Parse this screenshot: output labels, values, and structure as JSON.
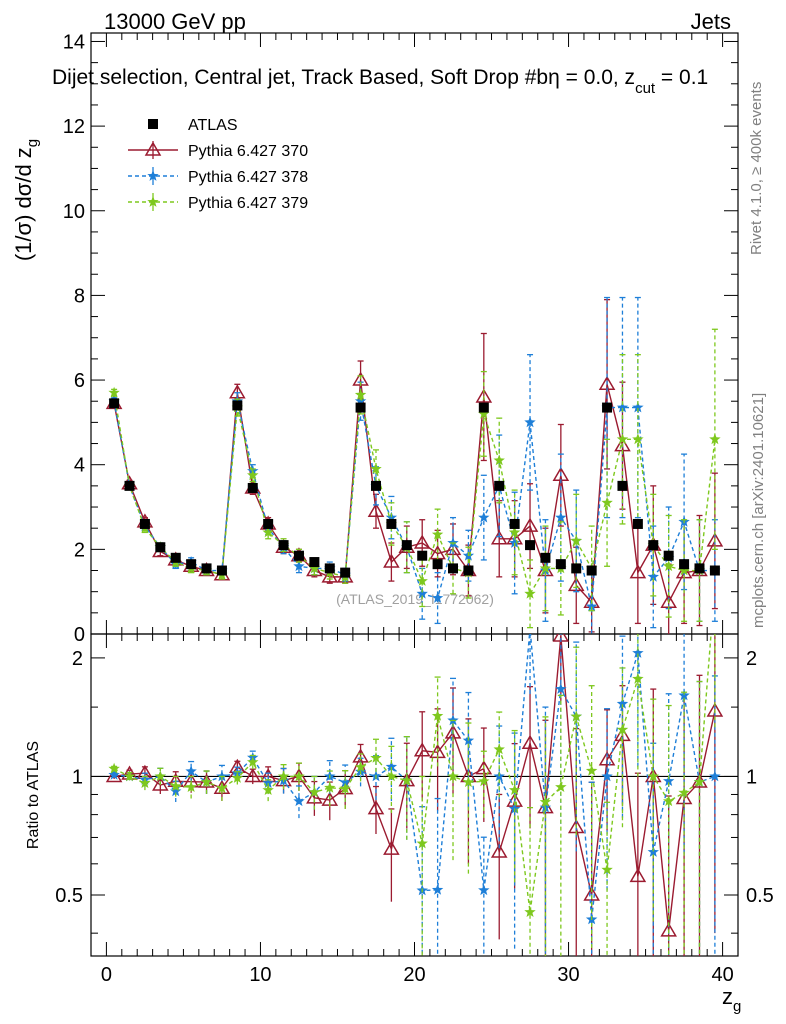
{
  "header": {
    "left": "13000 GeV pp",
    "right": "Jets"
  },
  "chart_data": {
    "type": "scatter",
    "title": "Dijet selection, Central jet, Track Based, Soft Drop #beta = 0.0, z_cut = 0.1",
    "title_parts": {
      "main": "Dijet selection, Central jet, Track Based, Soft Drop #b",
      "eta": "η = 0.0, z",
      "sub": "cut",
      "tail": " = 0.1"
    },
    "xlabel": "z",
    "xlabel_sub": "g",
    "ylabel": "(1/σ) dσ/d z",
    "ylabel_sub": "g",
    "ratio_ylabel": "Ratio to ATLAS",
    "xlim": [
      -1,
      41
    ],
    "ylim": [
      0,
      14.2
    ],
    "ratio_ylim": [
      0.35,
      2.3
    ],
    "x_ticks": [
      "0",
      "10",
      "20",
      "30",
      "40"
    ],
    "y_ticks": [
      "0",
      "2",
      "4",
      "6",
      "8",
      "10",
      "12",
      "14"
    ],
    "ratio_ticks": [
      "0.5",
      "1",
      "2"
    ],
    "right_labels": {
      "rivet": "Rivet 4.1.0, ≥ 400k events",
      "mcplots": "mcplots.cern.ch [arXiv:2401.10621]"
    },
    "watermark": "(ATLAS_2019_I1772062)",
    "legend": [
      {
        "name": "ATLAS",
        "color": "#000000",
        "marker": "square"
      },
      {
        "name": "Pythia 6.427 370",
        "color": "#9b1b30",
        "marker": "triangle"
      },
      {
        "name": "Pythia 6.427 378",
        "color": "#1e7fd8",
        "marker": "star"
      },
      {
        "name": "Pythia 6.427 379",
        "color": "#7ec81e",
        "marker": "star"
      }
    ],
    "x": [
      0.5,
      1.5,
      2.5,
      3.5,
      4.5,
      5.5,
      6.5,
      7.5,
      8.5,
      9.5,
      10.5,
      11.5,
      12.5,
      13.5,
      14.5,
      15.5,
      16.5,
      17.5,
      18.5,
      19.5,
      20.5,
      21.5,
      22.5,
      23.5,
      24.5,
      25.5,
      26.5,
      27.5,
      28.5,
      29.5,
      30.5,
      31.5,
      32.5,
      33.5,
      34.5,
      35.5,
      36.5,
      37.5,
      38.5,
      39.5
    ],
    "series": [
      {
        "name": "ATLAS",
        "values": [
          5.45,
          3.5,
          2.6,
          2.05,
          1.8,
          1.65,
          1.55,
          1.5,
          5.4,
          3.45,
          2.6,
          2.1,
          1.85,
          1.7,
          1.55,
          1.45,
          5.35,
          3.5,
          2.6,
          2.1,
          1.85,
          1.65,
          1.55,
          1.5,
          5.35,
          3.5,
          2.6,
          2.1,
          1.8,
          1.65,
          1.55,
          1.5,
          5.35,
          3.5,
          2.6,
          2.1,
          1.85,
          1.65,
          1.55,
          1.5
        ],
        "errors": [
          0.05,
          0.05,
          0.05,
          0.05,
          0.05,
          0.05,
          0.05,
          0.05,
          0.08,
          0.05,
          0.05,
          0.05,
          0.05,
          0.05,
          0.05,
          0.05,
          0.1,
          0.08,
          0.08,
          0.08,
          0.08,
          0.08,
          0.08,
          0.08,
          0.1,
          0.1,
          0.1,
          0.1,
          0.1,
          0.1,
          0.1,
          0.1,
          0.12,
          0.12,
          0.12,
          0.12,
          0.12,
          0.12,
          0.12,
          0.12
        ]
      },
      {
        "name": "Pythia 6.427 370",
        "values": [
          5.45,
          3.55,
          2.65,
          1.95,
          1.75,
          1.6,
          1.5,
          1.4,
          5.7,
          3.45,
          2.6,
          2.05,
          1.85,
          1.5,
          1.35,
          1.35,
          6.0,
          2.9,
          1.7,
          2.05,
          2.15,
          1.9,
          2.0,
          1.5,
          5.6,
          2.25,
          2.25,
          2.55,
          1.5,
          3.75,
          1.15,
          0.75,
          5.9,
          4.45,
          1.45,
          2.1,
          0.75,
          1.45,
          1.5,
          2.2
        ],
        "errors": [
          0.08,
          0.08,
          0.1,
          0.1,
          0.1,
          0.1,
          0.1,
          0.1,
          0.2,
          0.15,
          0.15,
          0.15,
          0.15,
          0.15,
          0.15,
          0.15,
          0.45,
          0.4,
          0.45,
          0.5,
          0.55,
          0.55,
          0.6,
          0.6,
          1.5,
          0.9,
          0.9,
          1.0,
          1.0,
          1.2,
          0.9,
          0.7,
          2.0,
          1.5,
          1.2,
          1.4,
          0.9,
          1.2,
          1.3,
          1.6
        ]
      },
      {
        "name": "Pythia 6.427 378",
        "values": [
          5.5,
          3.5,
          2.55,
          2.05,
          1.65,
          1.7,
          1.5,
          1.5,
          5.5,
          3.85,
          2.5,
          2.05,
          1.6,
          1.55,
          1.55,
          1.4,
          5.5,
          3.5,
          2.75,
          2.05,
          0.95,
          0.85,
          2.15,
          1.85,
          2.75,
          3.5,
          2.15,
          5.0,
          1.5,
          2.75,
          2.2,
          0.65,
          5.35,
          5.35,
          5.35,
          1.35,
          1.8,
          2.65,
          1.5,
          1.5
        ],
        "errors": [
          0.08,
          0.08,
          0.1,
          0.1,
          0.1,
          0.1,
          0.1,
          0.1,
          0.2,
          0.15,
          0.15,
          0.15,
          0.15,
          0.15,
          0.15,
          0.15,
          0.45,
          0.45,
          0.5,
          0.6,
          0.6,
          0.6,
          0.6,
          0.6,
          1.0,
          1.2,
          1.2,
          1.6,
          1.2,
          1.5,
          1.2,
          0.8,
          2.6,
          2.6,
          2.6,
          1.2,
          1.2,
          1.6,
          1.2,
          1.2
        ]
      },
      {
        "name": "Pythia 6.427 379",
        "values": [
          5.7,
          3.5,
          2.5,
          2.05,
          1.7,
          1.55,
          1.5,
          1.4,
          5.35,
          3.75,
          2.4,
          2.1,
          1.85,
          1.55,
          1.45,
          1.35,
          5.65,
          3.9,
          2.6,
          2.05,
          1.25,
          2.35,
          1.55,
          1.45,
          5.2,
          4.1,
          2.4,
          0.95,
          1.55,
          1.55,
          2.2,
          1.55,
          3.1,
          4.6,
          4.6,
          2.1,
          1.6,
          1.5,
          1.5,
          4.6
        ],
        "errors": [
          0.08,
          0.08,
          0.1,
          0.1,
          0.1,
          0.1,
          0.1,
          0.1,
          0.2,
          0.15,
          0.15,
          0.15,
          0.15,
          0.15,
          0.15,
          0.15,
          0.45,
          0.45,
          0.5,
          0.6,
          0.6,
          0.6,
          0.6,
          0.6,
          1.0,
          1.0,
          1.0,
          0.8,
          1.0,
          1.1,
          1.1,
          1.0,
          1.5,
          2.0,
          2.0,
          1.2,
          1.2,
          1.2,
          1.2,
          2.6
        ]
      }
    ]
  }
}
